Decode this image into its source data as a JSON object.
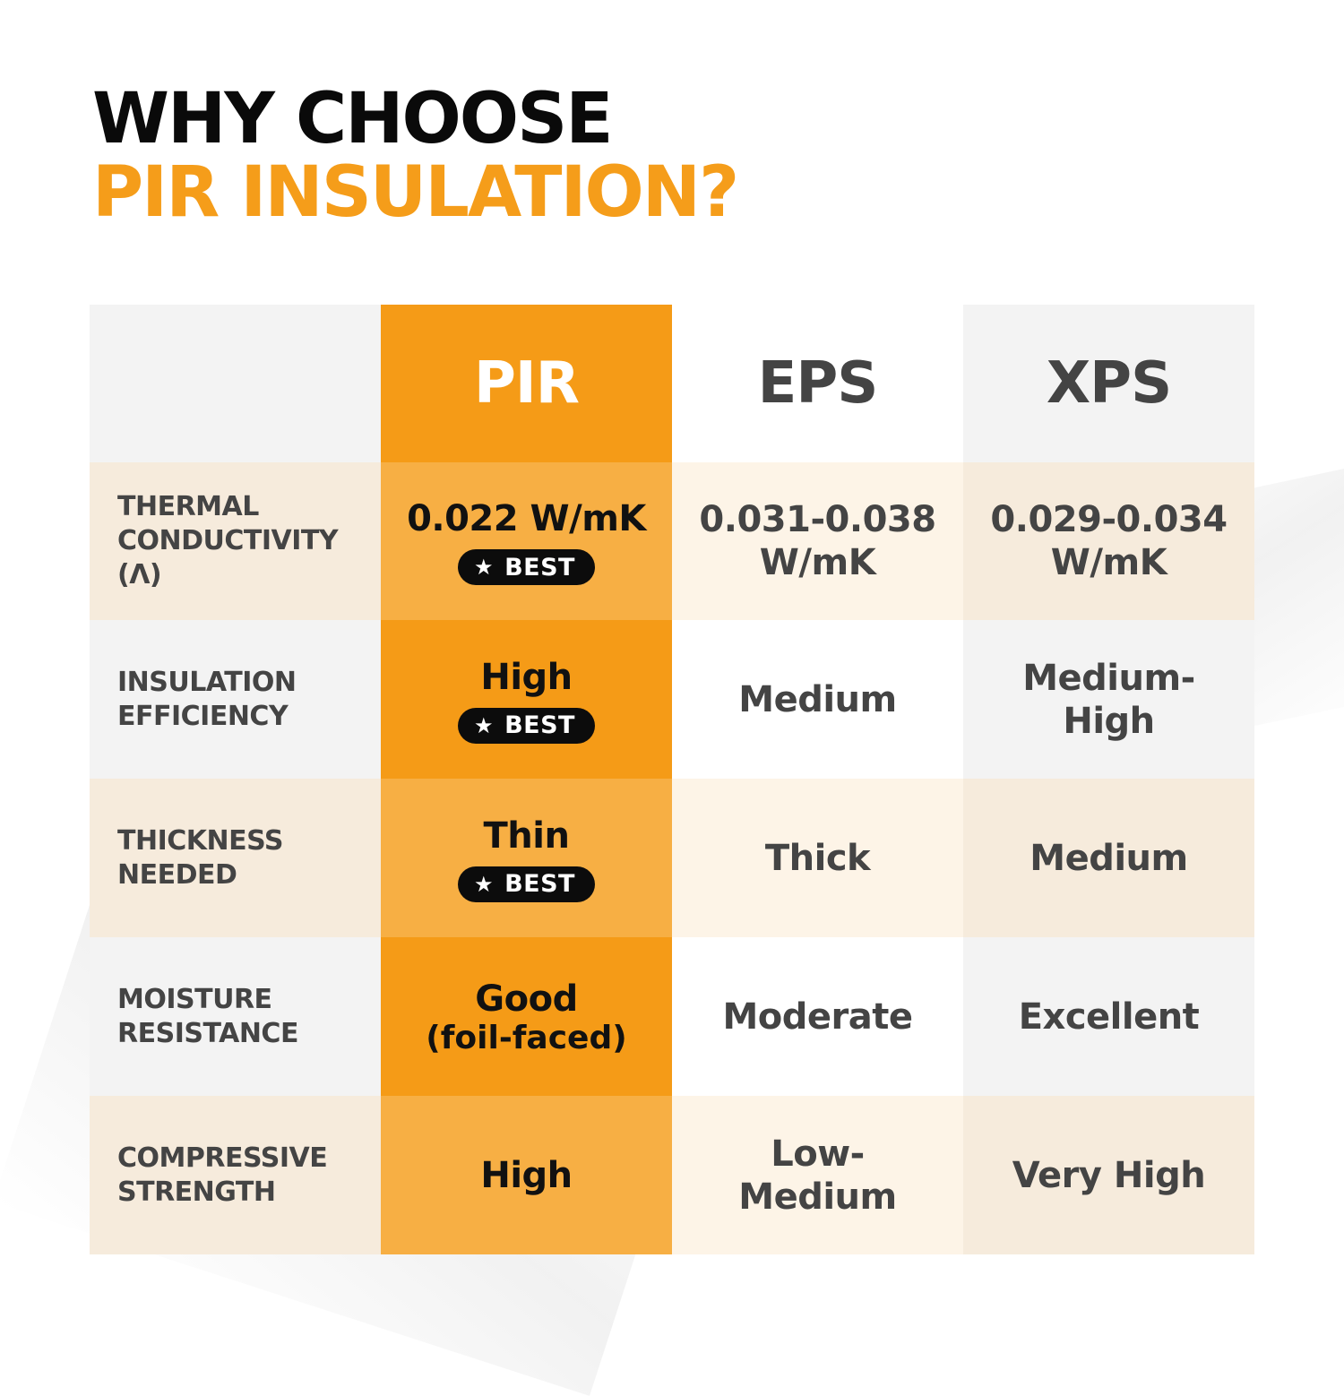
{
  "title": {
    "line1": "WHY CHOOSE",
    "line2": "PIR INSULATION?"
  },
  "table": {
    "columns": [
      "",
      "PIR",
      "EPS",
      "XPS"
    ],
    "badge_label": "BEST",
    "badge_icon": "star-icon",
    "rows": [
      {
        "label": "THERMAL\nCONDUCTIVITY\n(Λ)",
        "pir": "0.022 W/mK",
        "pir_badge": "BEST",
        "eps": "0.031-0.038\nW/mK",
        "xps": "0.029-0.034\nW/mK"
      },
      {
        "label": "INSULATION\nEFFICIENCY",
        "pir": "High",
        "pir_badge": "BEST",
        "eps": "Medium",
        "xps": "Medium-\nHigh"
      },
      {
        "label": "THICKNESS\nNEEDED",
        "pir": "Thin",
        "pir_badge": "BEST",
        "eps": "Thick",
        "xps": "Medium"
      },
      {
        "label": "MOISTURE\nRESISTANCE",
        "pir": "Good",
        "pir_sub": "(foil-faced)",
        "eps": "Moderate",
        "xps": "Excellent"
      },
      {
        "label": "COMPRESSIVE\nSTRENGTH",
        "pir": "High",
        "eps": "Low-\nMedium",
        "xps": "Very High"
      }
    ]
  },
  "colors": {
    "accent_orange": "#f59d1a",
    "title_black": "#0a0a0a",
    "text_gray": "#444444",
    "badge_black": "#0c0c0c"
  }
}
